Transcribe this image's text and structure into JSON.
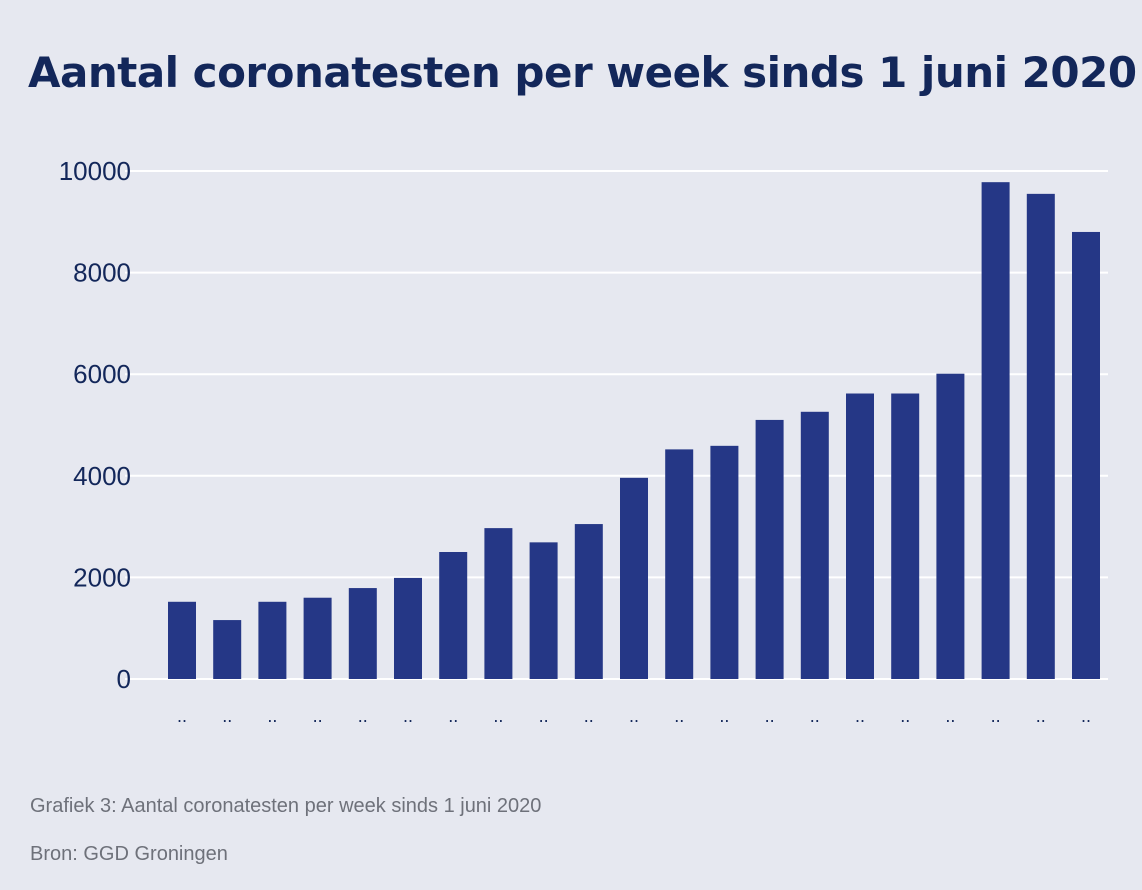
{
  "chart_data": {
    "type": "bar",
    "title": "Aantal coronatesten per week sinds 1 juni 2020",
    "categories": [
      "..",
      "..",
      "..",
      "..",
      "..",
      "..",
      "..",
      "..",
      "..",
      "..",
      "..",
      "..",
      "..",
      "..",
      "..",
      "..",
      "..",
      "..",
      "..",
      "..",
      ".."
    ],
    "values": [
      1520,
      1160,
      1520,
      1600,
      1790,
      1990,
      2500,
      2970,
      2690,
      3050,
      3960,
      4520,
      4590,
      5100,
      5260,
      5620,
      5620,
      6010,
      9780,
      9550,
      8800
    ],
    "ylim": [
      0,
      10000
    ],
    "yticks": [
      0,
      2000,
      4000,
      6000,
      8000,
      10000
    ],
    "xlabel": "",
    "ylabel": "",
    "grid": true,
    "bar_color": "#253786",
    "grid_color": "#ffffff"
  },
  "caption": "Grafiek 3: Aantal coronatesten per week sinds 1 juni 2020",
  "source": "Bron: GGD Groningen"
}
